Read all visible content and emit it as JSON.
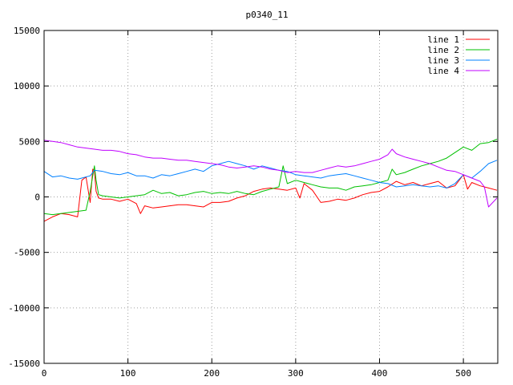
{
  "chart_data": {
    "type": "line",
    "title": "p0340_11",
    "xlabel": "",
    "ylabel": "",
    "xlim": [
      0,
      541
    ],
    "ylim": [
      -15000,
      15000
    ],
    "xticks": [
      0,
      100,
      200,
      300,
      400,
      500
    ],
    "yticks": [
      -15000,
      -10000,
      -5000,
      0,
      5000,
      10000,
      15000
    ],
    "grid": true,
    "legend_position": "top-right",
    "series": [
      {
        "name": "line 1",
        "color": "#ff0000",
        "x": [
          0,
          10,
          20,
          30,
          40,
          45,
          50,
          55,
          58,
          60,
          62,
          65,
          70,
          80,
          90,
          100,
          110,
          115,
          120,
          130,
          140,
          150,
          160,
          170,
          180,
          190,
          200,
          210,
          220,
          230,
          240,
          250,
          260,
          270,
          280,
          290,
          300,
          305,
          310,
          320,
          330,
          340,
          350,
          360,
          370,
          380,
          390,
          400,
          410,
          420,
          430,
          440,
          450,
          460,
          470,
          480,
          490,
          500,
          505,
          510,
          520,
          530,
          540
        ],
        "y": [
          -2200,
          -1800,
          -1500,
          -1600,
          -1800,
          1500,
          1800,
          -500,
          2500,
          2400,
          500,
          -100,
          -200,
          -200,
          -400,
          -200,
          -600,
          -1500,
          -800,
          -1000,
          -900,
          -800,
          -700,
          -700,
          -800,
          -900,
          -500,
          -500,
          -400,
          -100,
          100,
          500,
          700,
          800,
          700,
          600,
          800,
          -100,
          1200,
          600,
          -500,
          -400,
          -200,
          -300,
          -100,
          200,
          400,
          500,
          900,
          1400,
          1100,
          1300,
          1000,
          1200,
          1400,
          800,
          1000,
          2000,
          700,
          1300,
          1000,
          800,
          600
        ]
      },
      {
        "name": "line 2",
        "color": "#00c000",
        "x": [
          0,
          10,
          20,
          30,
          40,
          50,
          55,
          60,
          62,
          65,
          70,
          80,
          90,
          100,
          110,
          120,
          130,
          140,
          150,
          160,
          170,
          180,
          190,
          200,
          210,
          220,
          230,
          240,
          250,
          260,
          270,
          280,
          285,
          290,
          300,
          310,
          320,
          330,
          340,
          350,
          360,
          370,
          380,
          390,
          400,
          410,
          415,
          420,
          430,
          440,
          450,
          460,
          470,
          480,
          490,
          500,
          510,
          520,
          530,
          540
        ],
        "y": [
          -1500,
          -1600,
          -1500,
          -1400,
          -1300,
          -1200,
          500,
          2800,
          1500,
          200,
          100,
          0,
          -100,
          0,
          100,
          200,
          600,
          300,
          400,
          100,
          200,
          400,
          500,
          300,
          400,
          300,
          500,
          300,
          200,
          500,
          700,
          900,
          2800,
          1200,
          1500,
          1300,
          1100,
          900,
          800,
          800,
          600,
          900,
          1000,
          1100,
          1300,
          1500,
          2500,
          2000,
          2200,
          2500,
          2800,
          3000,
          3200,
          3500,
          4000,
          4500,
          4200,
          4800,
          4900,
          5200
        ]
      },
      {
        "name": "line 3",
        "color": "#0080ff",
        "x": [
          0,
          10,
          20,
          30,
          40,
          50,
          55,
          60,
          70,
          80,
          90,
          100,
          110,
          120,
          130,
          140,
          150,
          160,
          170,
          180,
          190,
          200,
          210,
          220,
          230,
          240,
          250,
          260,
          270,
          280,
          290,
          300,
          310,
          320,
          330,
          340,
          350,
          360,
          370,
          380,
          390,
          400,
          410,
          420,
          430,
          440,
          450,
          460,
          470,
          480,
          490,
          500,
          510,
          520,
          530,
          540
        ],
        "y": [
          2300,
          1800,
          1900,
          1700,
          1600,
          1800,
          1900,
          2400,
          2300,
          2100,
          2000,
          2200,
          1900,
          1900,
          1700,
          2000,
          1900,
          2100,
          2300,
          2500,
          2300,
          2800,
          3000,
          3200,
          3000,
          2800,
          2500,
          2800,
          2600,
          2400,
          2300,
          2000,
          1900,
          1800,
          1700,
          1900,
          2000,
          2100,
          1900,
          1700,
          1500,
          1300,
          1200,
          900,
          1000,
          1100,
          1000,
          900,
          1000,
          800,
          1200,
          2000,
          1700,
          2300,
          3000,
          3300
        ]
      },
      {
        "name": "line 4",
        "color": "#c000ff",
        "x": [
          0,
          10,
          20,
          30,
          40,
          50,
          60,
          70,
          80,
          90,
          100,
          110,
          120,
          130,
          140,
          150,
          160,
          170,
          180,
          190,
          200,
          210,
          220,
          230,
          240,
          250,
          260,
          270,
          280,
          290,
          300,
          310,
          320,
          330,
          340,
          350,
          360,
          370,
          380,
          390,
          400,
          410,
          415,
          420,
          430,
          440,
          450,
          460,
          470,
          480,
          490,
          500,
          510,
          520,
          525,
          530,
          540
        ],
        "y": [
          5100,
          5000,
          4900,
          4700,
          4500,
          4400,
          4300,
          4200,
          4200,
          4100,
          3900,
          3800,
          3600,
          3500,
          3500,
          3400,
          3300,
          3300,
          3200,
          3100,
          3000,
          2900,
          2700,
          2600,
          2700,
          2800,
          2700,
          2500,
          2400,
          2200,
          2300,
          2200,
          2200,
          2400,
          2600,
          2800,
          2700,
          2800,
          3000,
          3200,
          3400,
          3800,
          4300,
          3900,
          3600,
          3400,
          3200,
          3000,
          2700,
          2400,
          2300,
          2000,
          1700,
          1400,
          900,
          -900,
          -100
        ]
      }
    ]
  }
}
